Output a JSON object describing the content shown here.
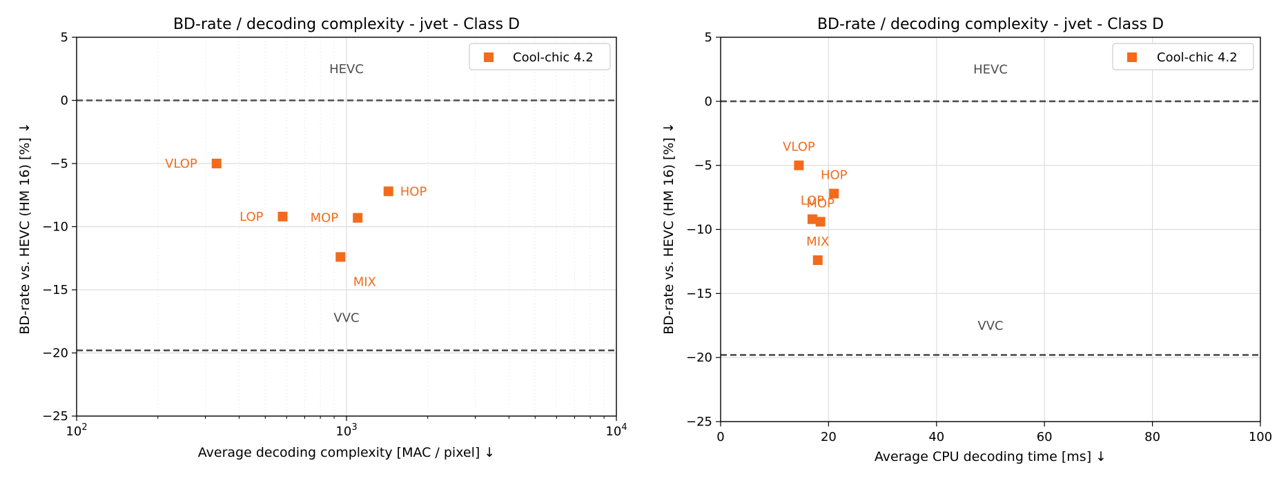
{
  "chart_data": [
    {
      "type": "scatter",
      "title": "BD-rate / decoding complexity - jvet - Class D",
      "xlabel": "Average decoding complexity [MAC / pixel]  ↓",
      "ylabel": "BD-rate vs. HEVC (HM 16) [%]  ↓",
      "xscale": "log",
      "xlim": [
        100,
        10000
      ],
      "ylim": [
        -25,
        5
      ],
      "grid": true,
      "legend_position": "top-right",
      "xticks": [
        {
          "value": 100,
          "base": "10",
          "exp": "2"
        },
        {
          "value": 1000,
          "base": "10",
          "exp": "3"
        },
        {
          "value": 10000,
          "base": "10",
          "exp": "4"
        }
      ],
      "yticks": [
        5,
        0,
        -5,
        -10,
        -15,
        -20,
        -25
      ],
      "reference_lines": [
        {
          "label": "HEVC",
          "y": 0,
          "label_x": 1000,
          "label_y": 2.5
        },
        {
          "label": "VVC",
          "y": -19.8,
          "label_x": 1000,
          "label_y": -17.2
        }
      ],
      "series": [
        {
          "name": "Cool-chic 4.2",
          "color": "#f26b1d",
          "marker": "square",
          "points": [
            {
              "label": "VLOP",
              "x": 330,
              "y": -5.0,
              "label_pos": "left"
            },
            {
              "label": "LOP",
              "x": 580,
              "y": -9.2,
              "label_pos": "left"
            },
            {
              "label": "MOP",
              "x": 1100,
              "y": -9.3,
              "label_pos": "left"
            },
            {
              "label": "HOP",
              "x": 1430,
              "y": -7.2,
              "label_pos": "right"
            },
            {
              "label": "MIX",
              "x": 950,
              "y": -12.4,
              "label_pos": "below"
            }
          ]
        }
      ]
    },
    {
      "type": "scatter",
      "title": "BD-rate / decoding complexity - jvet - Class D",
      "xlabel": "Average CPU decoding time [ms]  ↓",
      "ylabel": "BD-rate vs. HEVC (HM 16) [%]  ↓",
      "xscale": "linear",
      "xlim": [
        0,
        100
      ],
      "ylim": [
        -25,
        5
      ],
      "grid": true,
      "legend_position": "top-right",
      "xticks": [
        0,
        20,
        40,
        60,
        80,
        100
      ],
      "yticks": [
        5,
        0,
        -5,
        -10,
        -15,
        -20,
        -25
      ],
      "reference_lines": [
        {
          "label": "HEVC",
          "y": 0,
          "label_x": 50,
          "label_y": 2.5
        },
        {
          "label": "VVC",
          "y": -19.8,
          "label_x": 50,
          "label_y": -17.5
        }
      ],
      "series": [
        {
          "name": "Cool-chic 4.2",
          "color": "#f26b1d",
          "marker": "square",
          "points": [
            {
              "label": "VLOP",
              "x": 14.5,
              "y": -5.0,
              "label_pos": "above"
            },
            {
              "label": "LOP",
              "x": 17.0,
              "y": -9.2,
              "label_pos": "above"
            },
            {
              "label": "MOP",
              "x": 18.5,
              "y": -9.4,
              "label_pos": "above"
            },
            {
              "label": "HOP",
              "x": 21.0,
              "y": -7.2,
              "label_pos": "above"
            },
            {
              "label": "MIX",
              "x": 18.0,
              "y": -12.4,
              "label_pos": "above"
            }
          ]
        }
      ]
    }
  ]
}
